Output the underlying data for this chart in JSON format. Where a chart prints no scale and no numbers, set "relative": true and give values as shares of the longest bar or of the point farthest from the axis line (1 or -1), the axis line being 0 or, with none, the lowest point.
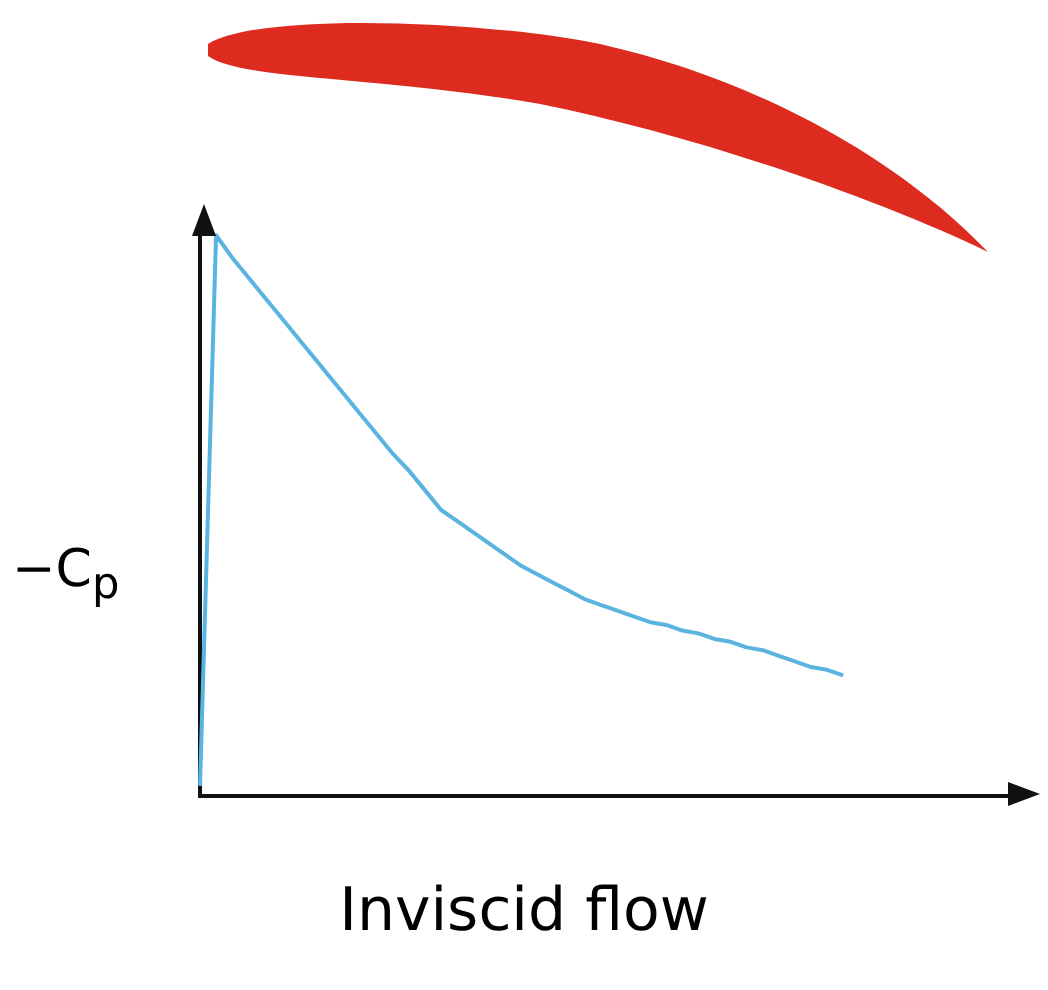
{
  "chart_data": {
    "type": "line",
    "title": "Inviscid flow",
    "ylabel": "−C$_{p}$",
    "relative": true,
    "color": "#5bb4e0",
    "categories": [
      null,
      null,
      null,
      null,
      null,
      null,
      null,
      null,
      null,
      null,
      null,
      null,
      null,
      null,
      null,
      null,
      null,
      null,
      null,
      null,
      null,
      null,
      null,
      null,
      null,
      null,
      null,
      null,
      null,
      null,
      null,
      null,
      null,
      null,
      null,
      null,
      null,
      null,
      null,
      null,
      null,
      null,
      null,
      null,
      null,
      null,
      null,
      null,
      null,
      null,
      null,
      null
    ],
    "values": [
      0.018,
      1.0,
      0.96,
      0.925,
      0.89,
      0.855,
      0.82,
      0.785,
      0.75,
      0.715,
      0.68,
      0.645,
      0.61,
      0.58,
      0.545,
      0.51,
      0.49,
      0.47,
      0.45,
      0.43,
      0.41,
      0.395,
      0.38,
      0.365,
      0.35,
      0.34,
      0.33,
      0.32,
      0.31,
      0.305,
      0.295,
      0.29,
      0.28,
      0.275,
      0.265,
      0.26,
      0.25,
      0.24,
      0.23,
      0.225,
      0.215,
      null,
      null,
      null,
      null,
      null,
      null,
      null,
      null,
      null,
      null,
      null
    ]
  }
}
